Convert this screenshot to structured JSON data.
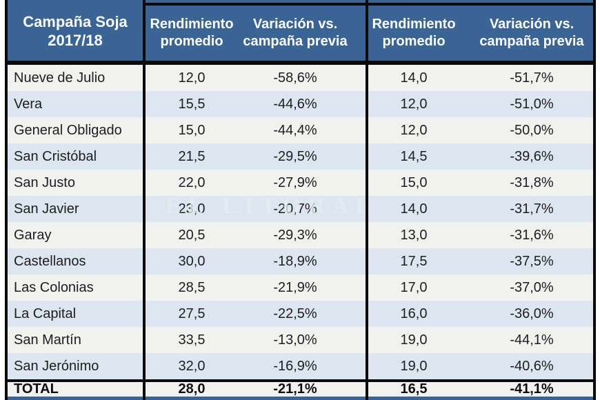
{
  "colors": {
    "header_blue": "#3a6494",
    "stripe_blue": "#dce6f1",
    "stripe_light": "#f1f1ef",
    "border_black": "#0a0a0a",
    "text_dark": "#1d1d1d"
  },
  "chart_data": {
    "type": "table",
    "title": "Campaña Soja 2017/18",
    "corner_header": {
      "line1": "Campaña Soja",
      "line2": "2017/18"
    },
    "column_groups": [
      {
        "rendimiento_label": "Rendimiento promedio",
        "variacion_label": "Variación vs. campaña previa"
      },
      {
        "rendimiento_label": "Rendimiento promedio",
        "variacion_label": "Variación vs. campaña previa"
      }
    ],
    "rows": [
      {
        "name": "Nueve de Julio",
        "cells": [
          "12,0",
          "-58,6%",
          "14,0",
          "-51,7%"
        ]
      },
      {
        "name": "Vera",
        "cells": [
          "15,5",
          "-44,6%",
          "12,0",
          "-51,0%"
        ]
      },
      {
        "name": "General Obligado",
        "cells": [
          "15,0",
          "-44,4%",
          "12,0",
          "-50,0%"
        ]
      },
      {
        "name": "San Cristóbal",
        "cells": [
          "21,5",
          "-29,5%",
          "14,5",
          "-39,6%"
        ]
      },
      {
        "name": "San Justo",
        "cells": [
          "22,0",
          "-27,9%",
          "15,0",
          "-31,8%"
        ]
      },
      {
        "name": "San Javier",
        "cells": [
          "23,0",
          "-20,7%",
          "14,0",
          "-31,7%"
        ]
      },
      {
        "name": "Garay",
        "cells": [
          "20,5",
          "-29,3%",
          "13,0",
          "-31,6%"
        ]
      },
      {
        "name": "Castellanos",
        "cells": [
          "30,0",
          "-18,9%",
          "17,5",
          "-37,5%"
        ]
      },
      {
        "name": "Las Colonias",
        "cells": [
          "28,5",
          "-21,9%",
          "17,0",
          "-37,0%"
        ]
      },
      {
        "name": "La Capital",
        "cells": [
          "27,5",
          "-22,5%",
          "16,0",
          "-36,0%"
        ]
      },
      {
        "name": "San Martín",
        "cells": [
          "33,5",
          "-13,0%",
          "19,0",
          "-44,1%"
        ]
      },
      {
        "name": "San Jerónimo",
        "cells": [
          "32,0",
          "-16,9%",
          "19,0",
          "-40,6%"
        ]
      }
    ],
    "total_row": {
      "name": "TOTAL",
      "cells": [
        "28,0",
        "-21,1%",
        "16,5",
        "-41,1%"
      ]
    },
    "watermark": "EL LITORAL"
  }
}
